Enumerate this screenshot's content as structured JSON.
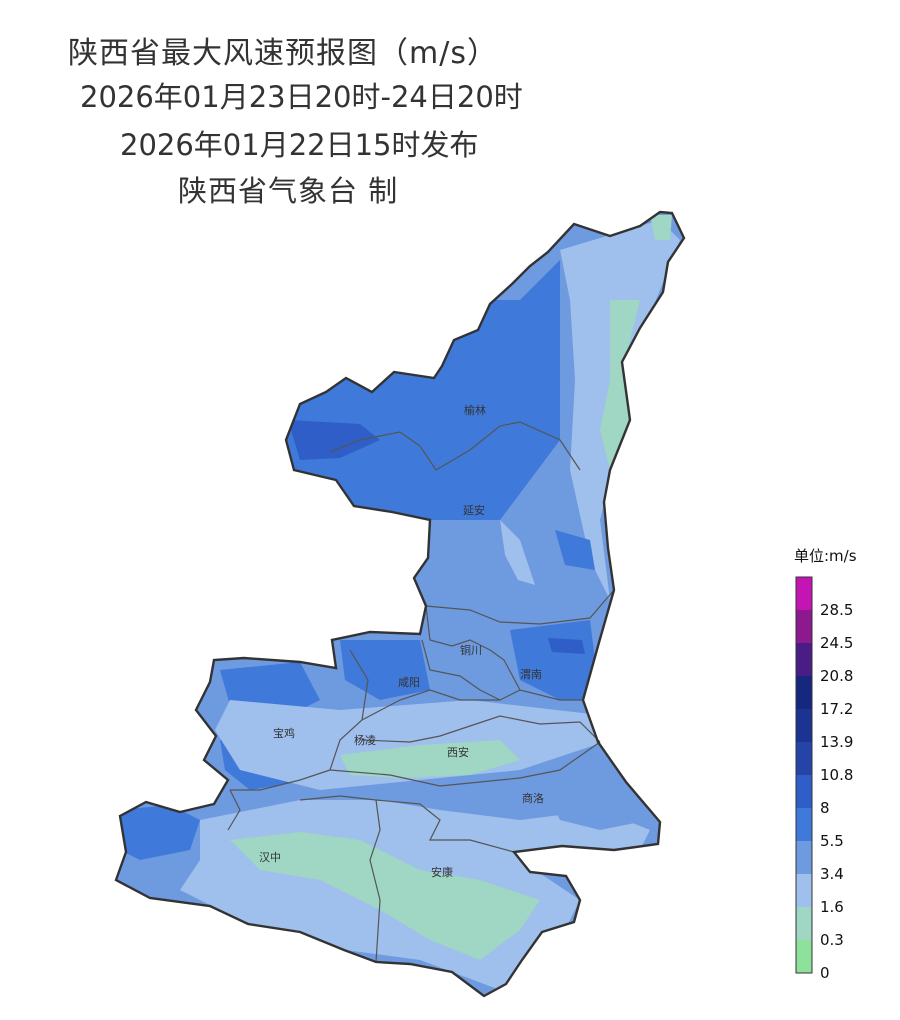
{
  "title": {
    "main": "陕西省最大风速预报图（m/s）",
    "period": "2026年01月23日20时-24日20时",
    "issued": "2026年01月22日15时发布",
    "producer": "陕西省气象台 制"
  },
  "cities": [
    {
      "id": "yulin",
      "name": "榆林"
    },
    {
      "id": "yanan",
      "name": "延安"
    },
    {
      "id": "tongchuan",
      "name": "铜川"
    },
    {
      "id": "weinan",
      "name": "渭南"
    },
    {
      "id": "xianyang",
      "name": "咸阳"
    },
    {
      "id": "baoji",
      "name": "宝鸡"
    },
    {
      "id": "yangling",
      "name": "杨凌"
    },
    {
      "id": "xian",
      "name": "西安"
    },
    {
      "id": "shangluo",
      "name": "商洛"
    },
    {
      "id": "hanzhong",
      "name": "汉中"
    },
    {
      "id": "ankang",
      "name": "安康"
    }
  ],
  "legend": {
    "title": "单位:m/s",
    "bins": [
      {
        "label": "0",
        "color": "#8de19a"
      },
      {
        "label": "0.3",
        "color": "#9fd6c4"
      },
      {
        "label": "1.6",
        "color": "#9fbfec"
      },
      {
        "label": "3.4",
        "color": "#6e9ae0"
      },
      {
        "label": "5.5",
        "color": "#3f79d9"
      },
      {
        "label": "8",
        "color": "#2f5ec8"
      },
      {
        "label": "10.8",
        "color": "#2544a8"
      },
      {
        "label": "13.9",
        "color": "#1d3394"
      },
      {
        "label": "17.2",
        "color": "#15277e"
      },
      {
        "label": "20.8",
        "color": "#4a1c85"
      },
      {
        "label": "24.5",
        "color": "#8c1a8e"
      },
      {
        "label": "28.5",
        "color": "#c414b4"
      }
    ]
  }
}
